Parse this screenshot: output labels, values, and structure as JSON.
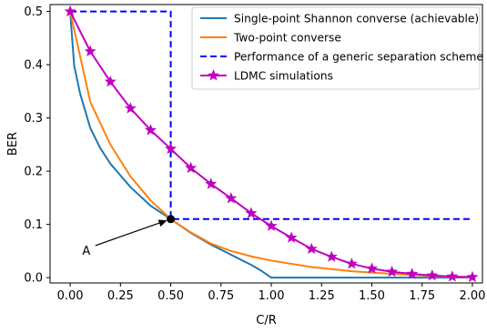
{
  "chart_data": {
    "type": "line",
    "title": "",
    "xlabel": "C/R",
    "ylabel": "BER",
    "xlim": [
      -0.1,
      2.05
    ],
    "ylim": [
      -0.01,
      0.513
    ],
    "xticks": [
      0.0,
      0.25,
      0.5,
      0.75,
      1.0,
      1.25,
      1.5,
      1.75,
      2.0
    ],
    "xtick_labels": [
      "0.00",
      "0.25",
      "0.50",
      "0.75",
      "1.00",
      "1.25",
      "1.50",
      "1.75",
      "2.00"
    ],
    "yticks": [
      0.0,
      0.1,
      0.2,
      0.3,
      0.4,
      0.5
    ],
    "ytick_labels": [
      "0.0",
      "0.1",
      "0.2",
      "0.3",
      "0.4",
      "0.5"
    ],
    "grid": false,
    "legend_position": "top-right",
    "series": [
      {
        "name": "Single-point Shannon converse (achievable)",
        "color": "#1f77b4",
        "style": "solid",
        "marker": "none",
        "x": [
          0.0,
          0.02,
          0.05,
          0.1,
          0.15,
          0.2,
          0.3,
          0.4,
          0.5,
          0.6,
          0.7,
          0.8,
          0.9,
          0.95,
          1.0,
          2.0
        ],
        "y": [
          0.5,
          0.398,
          0.345,
          0.281,
          0.243,
          0.214,
          0.17,
          0.135,
          0.11,
          0.084,
          0.062,
          0.043,
          0.024,
          0.013,
          0.0,
          0.0
        ]
      },
      {
        "name": "Two-point converse",
        "color": "#ff7f0e",
        "style": "solid",
        "marker": "none",
        "x": [
          0.0,
          0.1,
          0.2,
          0.3,
          0.4,
          0.5,
          0.6,
          0.7,
          0.8,
          0.9,
          1.0,
          1.2,
          1.4,
          1.6,
          1.8,
          2.0
        ],
        "y": [
          0.5,
          0.33,
          0.25,
          0.19,
          0.145,
          0.11,
          0.085,
          0.064,
          0.05,
          0.04,
          0.032,
          0.02,
          0.012,
          0.007,
          0.003,
          0.0
        ]
      },
      {
        "name": "Performance of a generic separation scheme",
        "color": "#0000ff",
        "style": "dashed",
        "marker": "none",
        "x": [
          0.0,
          0.5,
          0.5,
          2.0
        ],
        "y": [
          0.5,
          0.5,
          0.11,
          0.11
        ]
      },
      {
        "name": "LDMC simulations",
        "color": "#bf00bf",
        "style": "solid",
        "marker": "star",
        "x": [
          0.0,
          0.1,
          0.2,
          0.3,
          0.4,
          0.5,
          0.6,
          0.7,
          0.8,
          0.9,
          1.0,
          1.1,
          1.2,
          1.3,
          1.4,
          1.5,
          1.6,
          1.7,
          1.8,
          1.9,
          2.0
        ],
        "y": [
          0.5,
          0.425,
          0.368,
          0.318,
          0.277,
          0.242,
          0.206,
          0.176,
          0.149,
          0.121,
          0.097,
          0.075,
          0.054,
          0.039,
          0.026,
          0.017,
          0.011,
          0.007,
          0.004,
          0.002,
          0.001
        ]
      }
    ],
    "annotations": [
      {
        "text": "A",
        "point": [
          0.5,
          0.11
        ],
        "label_at": [
          0.08,
          0.05
        ]
      }
    ]
  }
}
